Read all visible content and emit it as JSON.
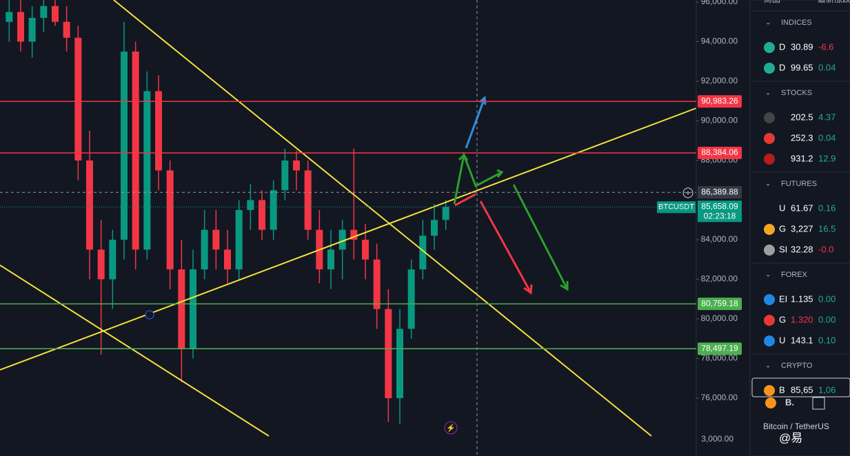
{
  "chart": {
    "symbol": "BTCUSDT",
    "ylim": [
      73078,
      96104
    ],
    "candles": [
      [
        95000,
        96500,
        94000,
        95500
      ],
      [
        95500,
        96200,
        93500,
        94000
      ],
      [
        94000,
        95800,
        93200,
        95200
      ],
      [
        95200,
        96400,
        94500,
        95800
      ],
      [
        95800,
        96500,
        94800,
        95000
      ],
      [
        95000,
        95800,
        93500,
        94200
      ],
      [
        94200,
        94800,
        87000,
        88000
      ],
      [
        88000,
        89500,
        82000,
        83500
      ],
      [
        83500,
        85000,
        78200,
        82000
      ],
      [
        82000,
        84500,
        80500,
        84000
      ],
      [
        84000,
        95000,
        83000,
        93500
      ],
      [
        93500,
        94000,
        82500,
        83500
      ],
      [
        83500,
        92500,
        83000,
        91500
      ],
      [
        91500,
        92300,
        86500,
        87500
      ],
      [
        87500,
        88000,
        81500,
        82500
      ],
      [
        82500,
        84000,
        76800,
        78500
      ],
      [
        78500,
        83500,
        78000,
        82500
      ],
      [
        82500,
        85500,
        82000,
        84500
      ],
      [
        84500,
        85500,
        82500,
        83500
      ],
      [
        83500,
        84500,
        81800,
        82500
      ],
      [
        82500,
        86000,
        82000,
        85500
      ],
      [
        85500,
        86800,
        84500,
        86000
      ],
      [
        86000,
        86500,
        84000,
        84500
      ],
      [
        84500,
        87000,
        84000,
        86500
      ],
      [
        86500,
        88600,
        86000,
        88000
      ],
      [
        88000,
        88500,
        86500,
        87500
      ],
      [
        87500,
        88000,
        84000,
        84500
      ],
      [
        84500,
        85500,
        81800,
        82500
      ],
      [
        82500,
        84500,
        81500,
        83500
      ],
      [
        83500,
        85000,
        82000,
        84500
      ],
      [
        84500,
        88600,
        83000,
        84000
      ],
      [
        84000,
        84800,
        82000,
        83000
      ],
      [
        83000,
        83800,
        79500,
        80500
      ],
      [
        80500,
        81500,
        74800,
        76000
      ],
      [
        76000,
        80500,
        74700,
        79500
      ],
      [
        79500,
        83000,
        79000,
        82500
      ],
      [
        82500,
        85000,
        82000,
        84200
      ],
      [
        84200,
        85800,
        83500,
        85000
      ],
      [
        85000,
        86000,
        84500,
        85658.09
      ]
    ],
    "price_ticks": [
      {
        "value": 96000,
        "label": "96,000.00"
      },
      {
        "value": 94000,
        "label": "94,000.00"
      },
      {
        "value": 92000,
        "label": "92,000.00"
      },
      {
        "value": 90000,
        "label": "90,000.00"
      },
      {
        "value": 88000,
        "label": "88,000.00"
      },
      {
        "value": 84000,
        "label": "84,000.00"
      },
      {
        "value": 82000,
        "label": "82,000.00"
      },
      {
        "value": 80000,
        "label": "80,000.00"
      },
      {
        "value": 78000,
        "label": "78,000.00"
      },
      {
        "value": 76000,
        "label": "76,000.00"
      }
    ],
    "volume_tick": "3,000.00",
    "levels": [
      {
        "value": 90983.26,
        "label": "90,983.26",
        "color": "#f23645"
      },
      {
        "value": 88384.06,
        "label": "88,384.06",
        "color": "#f23645"
      },
      {
        "value": 80759.18,
        "label": "80,759.18",
        "color": "#4caf50"
      },
      {
        "value": 78497.19,
        "label": "78,497.19",
        "color": "#4caf50"
      }
    ],
    "crosshair": {
      "value": 86389.88,
      "label": "86,389.88"
    },
    "last": {
      "value": 85658.09,
      "label": "85,658.09",
      "countdown": "02:23:18"
    }
  },
  "watchlist": {
    "columns": [
      "商品",
      "最新",
      "涨跌"
    ],
    "sections": [
      {
        "title": "INDICES",
        "rows": [
          {
            "sym": "D",
            "last": "30.89",
            "chg": "-6.6",
            "color": "#f23645",
            "icon": "#22ab94"
          },
          {
            "sym": "D",
            "last": "99.65",
            "chg": "0.04",
            "color": "#22ab94",
            "icon": "#22ab94"
          }
        ]
      },
      {
        "title": "STOCKS",
        "rows": [
          {
            "last": "202.5",
            "chg": "4.37",
            "color": "#22ab94",
            "icon": "#444"
          },
          {
            "last": "252.3",
            "chg": "0.04",
            "color": "#22ab94",
            "icon": "#e53935"
          },
          {
            "last": "931.2",
            "chg": "12.9",
            "color": "#22ab94",
            "icon": "#b71c1c"
          }
        ]
      },
      {
        "title": "FUTURES",
        "rows": [
          {
            "sym": "U",
            "last": "61.67",
            "chg": "0.16",
            "color": "#22ab94",
            "icon": "#131722"
          },
          {
            "sym": "G",
            "last": "3,227",
            "chg": "16.5",
            "color": "#22ab94",
            "icon": "#f5a623"
          },
          {
            "sym": "SI",
            "last": "32.28",
            "chg": "-0.0",
            "color": "#f23645",
            "icon": "#9e9e9e"
          }
        ]
      },
      {
        "title": "FOREX",
        "rows": [
          {
            "sym": "EI",
            "last": "1.135",
            "chg": "0.00",
            "color": "#22ab94",
            "icon": "#1e88e5"
          },
          {
            "sym": "G",
            "last": "1.320",
            "chg": "0.00",
            "color": "#22ab94",
            "icon": "#e53935",
            "lastcolor": "#f23645"
          },
          {
            "sym": "U",
            "last": "143.1",
            "chg": "0.10",
            "color": "#22ab94",
            "icon": "#1e88e5"
          }
        ]
      },
      {
        "title": "CRYPTO",
        "rows": [
          {
            "sym": "B",
            "last": "85,65",
            "chg": "1,06",
            "color": "#22ab94",
            "icon": "#f7931a"
          }
        ]
      }
    ],
    "detail": {
      "short": "B.",
      "name": "Bitcoin / TetherUS"
    }
  },
  "watermark": "@易"
}
